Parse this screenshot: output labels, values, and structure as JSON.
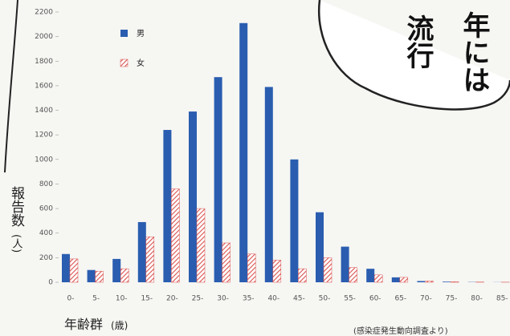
{
  "chart_data": {
    "type": "bar",
    "categories": [
      "0-",
      "5-",
      "10-",
      "15-",
      "20-",
      "25-",
      "30-",
      "35-",
      "40-",
      "45-",
      "50-",
      "55-",
      "60-",
      "65-",
      "70-",
      "75-",
      "80-",
      "85-"
    ],
    "series": [
      {
        "name": "男",
        "color": "#2a5db0",
        "values": [
          230,
          100,
          190,
          490,
          1240,
          1390,
          1670,
          2110,
          1590,
          1000,
          570,
          290,
          110,
          40,
          10,
          5,
          2,
          1
        ]
      },
      {
        "name": "女",
        "color": "#d9534f",
        "values": [
          190,
          90,
          110,
          370,
          760,
          600,
          320,
          230,
          180,
          110,
          200,
          120,
          60,
          40,
          10,
          5,
          2,
          1
        ]
      }
    ],
    "ylim": [
      0,
      2200
    ],
    "yticks": [
      0,
      200,
      400,
      600,
      800,
      1000,
      1200,
      1400,
      1600,
      1800,
      2000,
      2200
    ],
    "x_label": "年齢群",
    "x_unit": "(歳)",
    "y_label": "報告数",
    "y_unit": "(人)",
    "source": "(感染症発生動向調査より)"
  },
  "bubble": {
    "columns": [
      "流行",
      "年には"
    ]
  }
}
